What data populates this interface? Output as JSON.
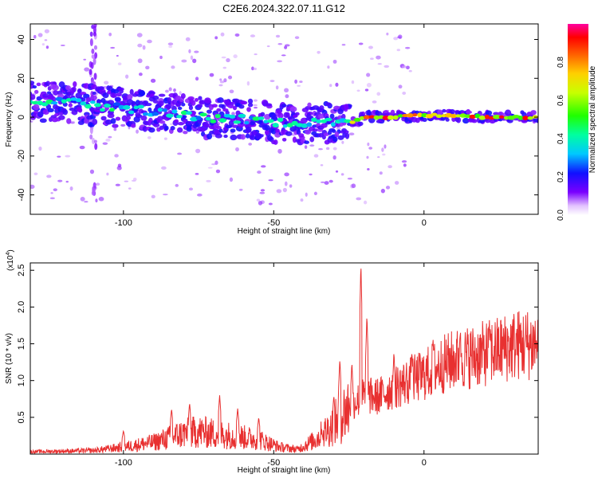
{
  "title": "C2E6.2024.322.07.11.G12",
  "chart_data": [
    {
      "type": "heatmap",
      "xlabel": "Height of straight line (km)",
      "ylabel": "Frequency (Hz)",
      "xlim": [
        -131,
        38
      ],
      "ylim": [
        -50,
        48
      ],
      "xticks": [
        -100,
        -50,
        0
      ],
      "yticks": [
        40,
        20,
        0,
        -20,
        -40
      ],
      "colorbar": {
        "label": "Normalized spectral amplitude",
        "range": [
          0,
          1
        ],
        "ticks": [
          0.0,
          0.2,
          0.4,
          0.6,
          0.8
        ]
      },
      "ridge": [
        {
          "x": -130,
          "f": 8
        },
        {
          "x": -120,
          "f": 8
        },
        {
          "x": -110,
          "f": 6
        },
        {
          "x": -100,
          "f": 5
        },
        {
          "x": -90,
          "f": 3
        },
        {
          "x": -80,
          "f": 1
        },
        {
          "x": -70,
          "f": -1
        },
        {
          "x": -60,
          "f": -1
        },
        {
          "x": -50,
          "f": -3
        },
        {
          "x": -40,
          "f": -3
        },
        {
          "x": -30,
          "f": -3
        },
        {
          "x": -25,
          "f": -4
        },
        {
          "x": -20,
          "f": 0
        },
        {
          "x": -10,
          "f": 0
        },
        {
          "x": 0,
          "f": 1
        },
        {
          "x": 10,
          "f": 1
        },
        {
          "x": 20,
          "f": 0
        },
        {
          "x": 30,
          "f": 0
        },
        {
          "x": 38,
          "f": 0
        }
      ]
    },
    {
      "type": "line",
      "xlabel": "Height of straight line (km)",
      "ylabel": "SNR (10 * v/v)",
      "y_multiplier_label": "(x10",
      "y_multiplier_exp": "4",
      "xlim": [
        -131,
        38
      ],
      "ylim": [
        0,
        2.6
      ],
      "xticks": [
        -100,
        -50,
        0
      ],
      "yticks": [
        0.5,
        1.0,
        1.5,
        2.0,
        2.5
      ],
      "envelope": [
        {
          "x": -131,
          "v": 0.04
        },
        {
          "x": -110,
          "v": 0.06
        },
        {
          "x": -100,
          "v": 0.12
        },
        {
          "x": -90,
          "v": 0.2
        },
        {
          "x": -80,
          "v": 0.35
        },
        {
          "x": -75,
          "v": 0.38
        },
        {
          "x": -65,
          "v": 0.32
        },
        {
          "x": -55,
          "v": 0.25
        },
        {
          "x": -48,
          "v": 0.12
        },
        {
          "x": -42,
          "v": 0.08
        },
        {
          "x": -36,
          "v": 0.25
        },
        {
          "x": -30,
          "v": 0.5
        },
        {
          "x": -25,
          "v": 0.8
        },
        {
          "x": -20,
          "v": 0.95
        },
        {
          "x": -15,
          "v": 0.95
        },
        {
          "x": -10,
          "v": 1.1
        },
        {
          "x": -5,
          "v": 1.2
        },
        {
          "x": 0,
          "v": 1.3
        },
        {
          "x": 5,
          "v": 1.45
        },
        {
          "x": 10,
          "v": 1.55
        },
        {
          "x": 15,
          "v": 1.6
        },
        {
          "x": 20,
          "v": 1.65
        },
        {
          "x": 25,
          "v": 1.72
        },
        {
          "x": 30,
          "v": 1.8
        },
        {
          "x": 38,
          "v": 1.82
        }
      ],
      "spikes": [
        {
          "x": -100,
          "v": 0.32
        },
        {
          "x": -84,
          "v": 0.62
        },
        {
          "x": -78,
          "v": 0.7
        },
        {
          "x": -68,
          "v": 0.8
        },
        {
          "x": -62,
          "v": 0.62
        },
        {
          "x": -55,
          "v": 0.5
        },
        {
          "x": -34,
          "v": 0.3
        },
        {
          "x": -30,
          "v": 0.8
        },
        {
          "x": -28,
          "v": 1.3
        },
        {
          "x": -24,
          "v": 1.25
        },
        {
          "x": -21,
          "v": 2.6
        },
        {
          "x": -19,
          "v": 1.9
        },
        {
          "x": -10,
          "v": 1.4
        },
        {
          "x": -4,
          "v": 1.4
        },
        {
          "x": 3,
          "v": 1.6
        },
        {
          "x": 12,
          "v": 1.67
        },
        {
          "x": 22,
          "v": 1.7
        }
      ],
      "color": "#e83030"
    }
  ]
}
